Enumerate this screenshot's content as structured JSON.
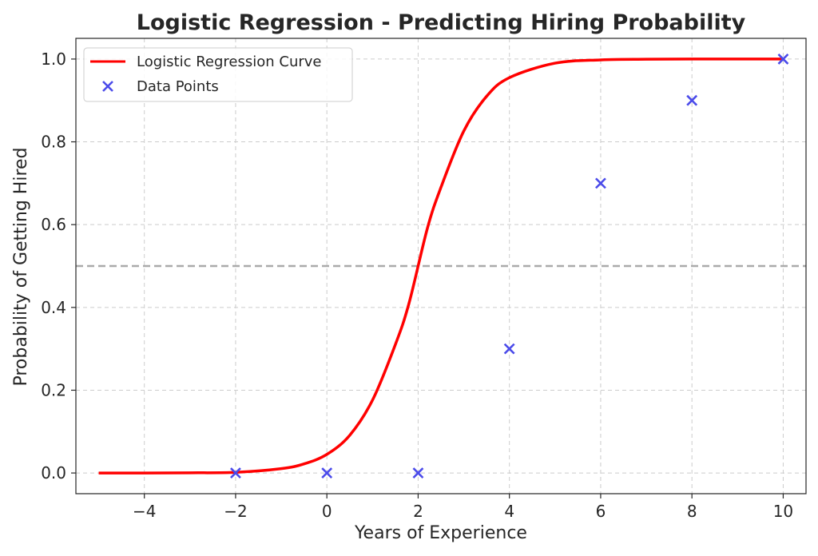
{
  "chart_data": {
    "type": "line",
    "title": "Logistic Regression - Predicting Hiring Probability",
    "xlabel": "Years of Experience",
    "ylabel": "Probability of Getting Hired",
    "xlim": [
      -5.5,
      10.5
    ],
    "ylim": [
      -0.05,
      1.05
    ],
    "xticks": [
      -4,
      -2,
      0,
      2,
      4,
      6,
      8,
      10
    ],
    "xtick_labels": [
      "−4",
      "−2",
      "0",
      "2",
      "4",
      "6",
      "8",
      "10"
    ],
    "yticks": [
      0.0,
      0.2,
      0.4,
      0.6,
      0.8,
      1.0
    ],
    "ytick_labels": [
      "0.0",
      "0.2",
      "0.4",
      "0.6",
      "0.8",
      "1.0"
    ],
    "grid": true,
    "legend_position": "top-left",
    "threshold_line": {
      "y": 0.5,
      "style": "dashed",
      "color": "#aaaaaa"
    },
    "series": [
      {
        "name": "Logistic Regression Curve",
        "kind": "line",
        "color": "#ff0000",
        "x_range": [
          -5,
          10
        ],
        "x": [
          -5,
          -4,
          -3,
          -2,
          -1,
          -0.5,
          0,
          0.5,
          1,
          1.5,
          1.8,
          2.2,
          2.5,
          3,
          3.5,
          4,
          5,
          6,
          7,
          8,
          9,
          10
        ],
        "y": [
          0.0,
          0.0,
          0.0005,
          0.0016,
          0.0105,
          0.022,
          0.045,
          0.091,
          0.176,
          0.31,
          0.41,
          0.59,
          0.69,
          0.826,
          0.91,
          0.955,
          0.99,
          0.998,
          0.9995,
          1.0,
          1.0,
          1.0
        ]
      },
      {
        "name": "Data Points",
        "kind": "scatter",
        "marker": "x",
        "color": "#4b4bea",
        "x": [
          -2,
          0,
          2,
          4,
          6,
          8,
          10
        ],
        "y": [
          0.0,
          0.0,
          0.0,
          0.3,
          0.7,
          0.9,
          1.0
        ]
      }
    ]
  }
}
